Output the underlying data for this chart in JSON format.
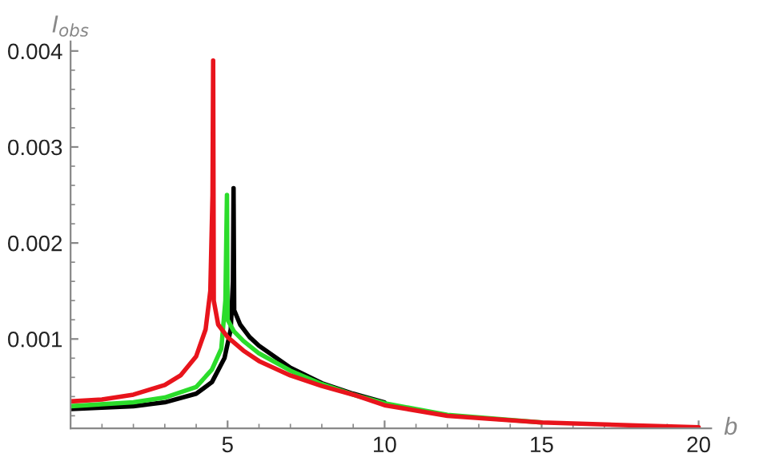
{
  "chart_data": {
    "type": "line",
    "xlabel": "b",
    "ylabel": "I$_{obs}$",
    "xlim": [
      0,
      20.4
    ],
    "ylim": [
      7e-05,
      0.0041
    ],
    "xticks": [
      5,
      10,
      15,
      20
    ],
    "yticks": [
      0.001,
      0.002,
      0.003,
      0.004
    ],
    "grid": false,
    "legend": false,
    "marker": "none",
    "line_style": "solid",
    "series": [
      {
        "color": "#000000",
        "x": [
          0,
          2,
          3,
          4,
          4.5,
          4.9,
          5.1,
          5.17,
          5.19,
          5.21,
          5.4,
          5.7,
          6,
          7,
          8,
          9,
          10
        ],
        "values": [
          0.00027,
          0.0003,
          0.00034,
          0.00043,
          0.00055,
          0.0008,
          0.0011,
          0.0016,
          0.00257,
          0.0013,
          0.00115,
          0.00102,
          0.00093,
          0.0007,
          0.00054,
          0.00043,
          0.00034
        ]
      },
      {
        "color": "#2bdc2b",
        "x": [
          0,
          2,
          3,
          4,
          4.5,
          4.8,
          4.93,
          4.98,
          5.0,
          5.2,
          5.5,
          6,
          7,
          8,
          9,
          10,
          12,
          15
        ],
        "values": [
          0.0003,
          0.00034,
          0.00039,
          0.0005,
          0.00068,
          0.0009,
          0.0014,
          0.0025,
          0.0012,
          0.00108,
          0.00098,
          0.00085,
          0.00067,
          0.00053,
          0.00042,
          0.00033,
          0.00021,
          0.00013
        ]
      },
      {
        "color": "#e8141c",
        "x": [
          0,
          1,
          2,
          3,
          3.5,
          4,
          4.3,
          4.45,
          4.52,
          4.54,
          4.56,
          4.7,
          5,
          5.5,
          6,
          7,
          8,
          9,
          10,
          12,
          15,
          18,
          20
        ],
        "values": [
          0.00035,
          0.00037,
          0.00042,
          0.00052,
          0.00062,
          0.00082,
          0.0011,
          0.0015,
          0.0025,
          0.0039,
          0.0014,
          0.00115,
          0.00102,
          0.00088,
          0.00077,
          0.00062,
          0.00051,
          0.00042,
          0.00031,
          0.0002,
          0.00013,
          0.0001,
          8e-05
        ]
      }
    ]
  }
}
